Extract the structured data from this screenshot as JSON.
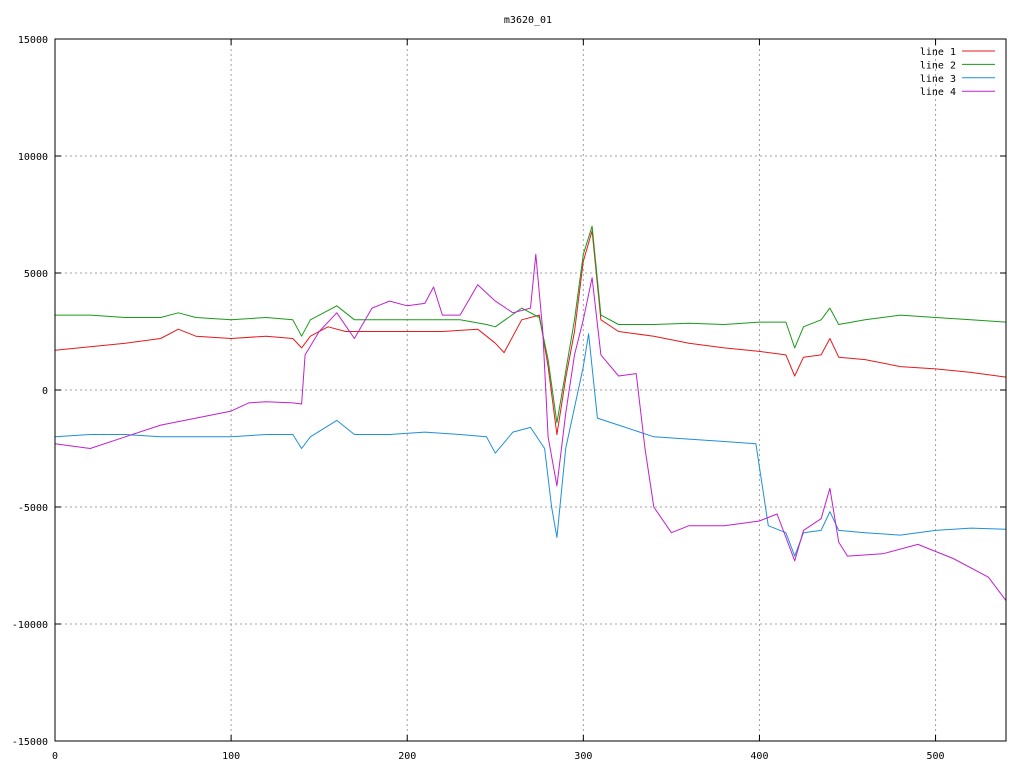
{
  "chart_data": {
    "type": "line",
    "title": "m3620_01",
    "xlabel": "",
    "ylabel": "",
    "xlim": [
      0,
      540
    ],
    "ylim": [
      -15000,
      15000
    ],
    "x_ticks": [
      0,
      100,
      200,
      300,
      400,
      500
    ],
    "y_ticks": [
      -15000,
      -10000,
      -5000,
      0,
      5000,
      10000,
      15000
    ],
    "grid": true,
    "legend_position": "top-right",
    "series": [
      {
        "name": "line 1",
        "color": "#e41a1c",
        "points": [
          [
            0,
            1700
          ],
          [
            20,
            1850
          ],
          [
            40,
            2000
          ],
          [
            60,
            2200
          ],
          [
            70,
            2600
          ],
          [
            80,
            2300
          ],
          [
            100,
            2200
          ],
          [
            120,
            2300
          ],
          [
            135,
            2200
          ],
          [
            140,
            1800
          ],
          [
            145,
            2300
          ],
          [
            155,
            2700
          ],
          [
            165,
            2500
          ],
          [
            180,
            2500
          ],
          [
            200,
            2500
          ],
          [
            220,
            2500
          ],
          [
            240,
            2600
          ],
          [
            250,
            2000
          ],
          [
            255,
            1600
          ],
          [
            265,
            3000
          ],
          [
            275,
            3200
          ],
          [
            280,
            1000
          ],
          [
            285,
            -1900
          ],
          [
            290,
            500
          ],
          [
            295,
            2500
          ],
          [
            300,
            5500
          ],
          [
            305,
            6800
          ],
          [
            310,
            3000
          ],
          [
            320,
            2500
          ],
          [
            340,
            2300
          ],
          [
            360,
            2000
          ],
          [
            380,
            1800
          ],
          [
            400,
            1650
          ],
          [
            415,
            1500
          ],
          [
            420,
            600
          ],
          [
            425,
            1400
          ],
          [
            435,
            1500
          ],
          [
            440,
            2200
          ],
          [
            445,
            1400
          ],
          [
            460,
            1300
          ],
          [
            480,
            1000
          ],
          [
            500,
            900
          ],
          [
            520,
            750
          ],
          [
            540,
            550
          ]
        ]
      },
      {
        "name": "line 2",
        "color": "#1a9a1a",
        "points": [
          [
            0,
            3200
          ],
          [
            20,
            3200
          ],
          [
            40,
            3100
          ],
          [
            60,
            3100
          ],
          [
            70,
            3300
          ],
          [
            80,
            3100
          ],
          [
            100,
            3000
          ],
          [
            120,
            3100
          ],
          [
            135,
            3000
          ],
          [
            140,
            2300
          ],
          [
            145,
            3000
          ],
          [
            160,
            3600
          ],
          [
            170,
            3000
          ],
          [
            190,
            3000
          ],
          [
            210,
            3000
          ],
          [
            230,
            3000
          ],
          [
            245,
            2800
          ],
          [
            250,
            2700
          ],
          [
            265,
            3500
          ],
          [
            275,
            3100
          ],
          [
            280,
            1300
          ],
          [
            285,
            -1400
          ],
          [
            290,
            800
          ],
          [
            295,
            3000
          ],
          [
            300,
            5800
          ],
          [
            305,
            7000
          ],
          [
            310,
            3200
          ],
          [
            320,
            2800
          ],
          [
            340,
            2800
          ],
          [
            360,
            2850
          ],
          [
            380,
            2800
          ],
          [
            400,
            2900
          ],
          [
            415,
            2900
          ],
          [
            420,
            1800
          ],
          [
            425,
            2700
          ],
          [
            435,
            3000
          ],
          [
            440,
            3500
          ],
          [
            445,
            2800
          ],
          [
            460,
            3000
          ],
          [
            480,
            3200
          ],
          [
            500,
            3100
          ],
          [
            520,
            3000
          ],
          [
            540,
            2900
          ]
        ]
      },
      {
        "name": "line 3",
        "color": "#1f8fd8",
        "points": [
          [
            0,
            -2000
          ],
          [
            20,
            -1900
          ],
          [
            40,
            -1900
          ],
          [
            60,
            -2000
          ],
          [
            80,
            -2000
          ],
          [
            100,
            -2000
          ],
          [
            120,
            -1900
          ],
          [
            135,
            -1900
          ],
          [
            140,
            -2500
          ],
          [
            145,
            -2000
          ],
          [
            160,
            -1300
          ],
          [
            170,
            -1900
          ],
          [
            190,
            -1900
          ],
          [
            210,
            -1800
          ],
          [
            230,
            -1900
          ],
          [
            245,
            -2000
          ],
          [
            250,
            -2700
          ],
          [
            260,
            -1800
          ],
          [
            270,
            -1600
          ],
          [
            278,
            -2500
          ],
          [
            282,
            -5000
          ],
          [
            285,
            -6300
          ],
          [
            290,
            -2500
          ],
          [
            300,
            1000
          ],
          [
            303,
            2400
          ],
          [
            308,
            -1200
          ],
          [
            320,
            -1500
          ],
          [
            340,
            -2000
          ],
          [
            360,
            -2100
          ],
          [
            380,
            -2200
          ],
          [
            398,
            -2300
          ],
          [
            405,
            -5800
          ],
          [
            415,
            -6100
          ],
          [
            420,
            -7100
          ],
          [
            425,
            -6100
          ],
          [
            435,
            -6000
          ],
          [
            440,
            -5200
          ],
          [
            445,
            -6000
          ],
          [
            460,
            -6100
          ],
          [
            480,
            -6200
          ],
          [
            500,
            -6000
          ],
          [
            520,
            -5900
          ],
          [
            540,
            -5950
          ]
        ]
      },
      {
        "name": "line 4",
        "color": "#c020d0",
        "points": [
          [
            0,
            -2300
          ],
          [
            20,
            -2500
          ],
          [
            40,
            -2000
          ],
          [
            60,
            -1500
          ],
          [
            80,
            -1200
          ],
          [
            100,
            -900
          ],
          [
            110,
            -550
          ],
          [
            120,
            -500
          ],
          [
            135,
            -550
          ],
          [
            140,
            -600
          ],
          [
            142,
            1500
          ],
          [
            150,
            2500
          ],
          [
            160,
            3300
          ],
          [
            170,
            2200
          ],
          [
            180,
            3500
          ],
          [
            190,
            3800
          ],
          [
            200,
            3600
          ],
          [
            210,
            3700
          ],
          [
            215,
            4400
          ],
          [
            220,
            3200
          ],
          [
            230,
            3200
          ],
          [
            240,
            4500
          ],
          [
            250,
            3800
          ],
          [
            260,
            3300
          ],
          [
            270,
            3500
          ],
          [
            273,
            5800
          ],
          [
            277,
            2500
          ],
          [
            280,
            -2000
          ],
          [
            285,
            -4100
          ],
          [
            290,
            -1000
          ],
          [
            295,
            1500
          ],
          [
            300,
            3000
          ],
          [
            305,
            4800
          ],
          [
            310,
            1500
          ],
          [
            320,
            600
          ],
          [
            330,
            700
          ],
          [
            335,
            -2500
          ],
          [
            340,
            -5000
          ],
          [
            350,
            -6100
          ],
          [
            360,
            -5800
          ],
          [
            380,
            -5800
          ],
          [
            400,
            -5600
          ],
          [
            410,
            -5300
          ],
          [
            420,
            -7300
          ],
          [
            425,
            -6000
          ],
          [
            435,
            -5500
          ],
          [
            440,
            -4200
          ],
          [
            445,
            -6500
          ],
          [
            450,
            -7100
          ],
          [
            470,
            -7000
          ],
          [
            490,
            -6600
          ],
          [
            510,
            -7200
          ],
          [
            530,
            -8000
          ],
          [
            540,
            -9000
          ]
        ]
      }
    ]
  }
}
